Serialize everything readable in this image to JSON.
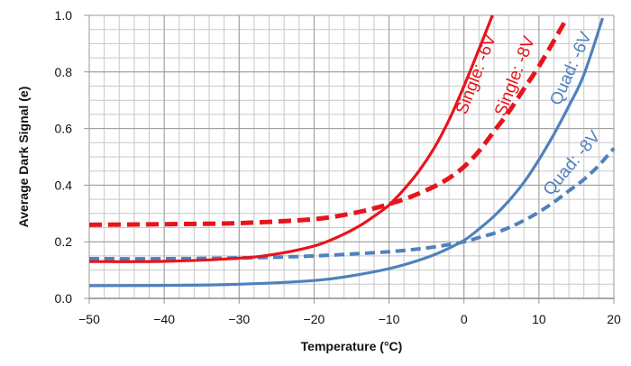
{
  "chart_data": {
    "type": "line",
    "title": "",
    "xlabel": "Temperature (°C)",
    "ylabel": "Average Dark Signal (e)",
    "xlim": [
      -50,
      20
    ],
    "ylim": [
      0.0,
      1.0
    ],
    "x_ticks": [
      "−50",
      "−40",
      "−30",
      "−20",
      "−10",
      "0",
      "10",
      "20"
    ],
    "x_tick_values": [
      -50,
      -40,
      -30,
      -20,
      -10,
      0,
      10,
      20
    ],
    "y_ticks": [
      "0.0",
      "0.2",
      "0.4",
      "0.6",
      "0.8",
      "1.0"
    ],
    "y_tick_values": [
      0.0,
      0.2,
      0.4,
      0.6,
      0.8,
      1.0
    ],
    "grid": true,
    "minor_grid": {
      "x_step": 2,
      "y_step": 0.05
    },
    "legend": "none (inline labels)",
    "series": [
      {
        "name": "Single: -6V",
        "color": "#e8141c",
        "style": "solid",
        "x": [
          -50,
          -40,
          -30,
          -25,
          -20,
          -17,
          -14,
          -12,
          -10,
          -8,
          -6,
          -4,
          -2,
          0,
          2,
          3.8
        ],
        "y": [
          0.13,
          0.131,
          0.142,
          0.157,
          0.185,
          0.215,
          0.255,
          0.29,
          0.33,
          0.385,
          0.45,
          0.53,
          0.63,
          0.75,
          0.88,
          1.0
        ]
      },
      {
        "name": "Single: -8V",
        "color": "#e8141c",
        "style": "dashed",
        "x": [
          -50,
          -40,
          -30,
          -20,
          -15,
          -12,
          -10,
          -7,
          -4,
          -2,
          0,
          2,
          4,
          6,
          8,
          10,
          12,
          13.5
        ],
        "y": [
          0.26,
          0.262,
          0.266,
          0.28,
          0.3,
          0.318,
          0.333,
          0.36,
          0.395,
          0.425,
          0.465,
          0.52,
          0.59,
          0.66,
          0.74,
          0.82,
          0.91,
          0.98
        ]
      },
      {
        "name": "Quad: -6V",
        "color": "#4f81bd",
        "style": "solid",
        "x": [
          -50,
          -40,
          -30,
          -20,
          -15,
          -10,
          -6,
          -3,
          0,
          2,
          4,
          6,
          8,
          10,
          12,
          14,
          16,
          18.5
        ],
        "y": [
          0.045,
          0.046,
          0.05,
          0.063,
          0.08,
          0.105,
          0.135,
          0.165,
          0.205,
          0.245,
          0.29,
          0.345,
          0.41,
          0.49,
          0.58,
          0.68,
          0.79,
          0.99
        ]
      },
      {
        "name": "Quad: -8V",
        "color": "#4f81bd",
        "style": "dashed",
        "x": [
          -50,
          -40,
          -30,
          -20,
          -10,
          -5,
          -2,
          0,
          2,
          4,
          6,
          8,
          10,
          12,
          14,
          16,
          18,
          20
        ],
        "y": [
          0.14,
          0.14,
          0.143,
          0.15,
          0.165,
          0.178,
          0.19,
          0.2,
          0.215,
          0.23,
          0.25,
          0.275,
          0.305,
          0.34,
          0.38,
          0.42,
          0.47,
          0.53
        ]
      }
    ],
    "annotations": [
      "Single: -6V",
      "Single: -8V",
      "Quad: -6V",
      "Quad: -8V"
    ]
  }
}
